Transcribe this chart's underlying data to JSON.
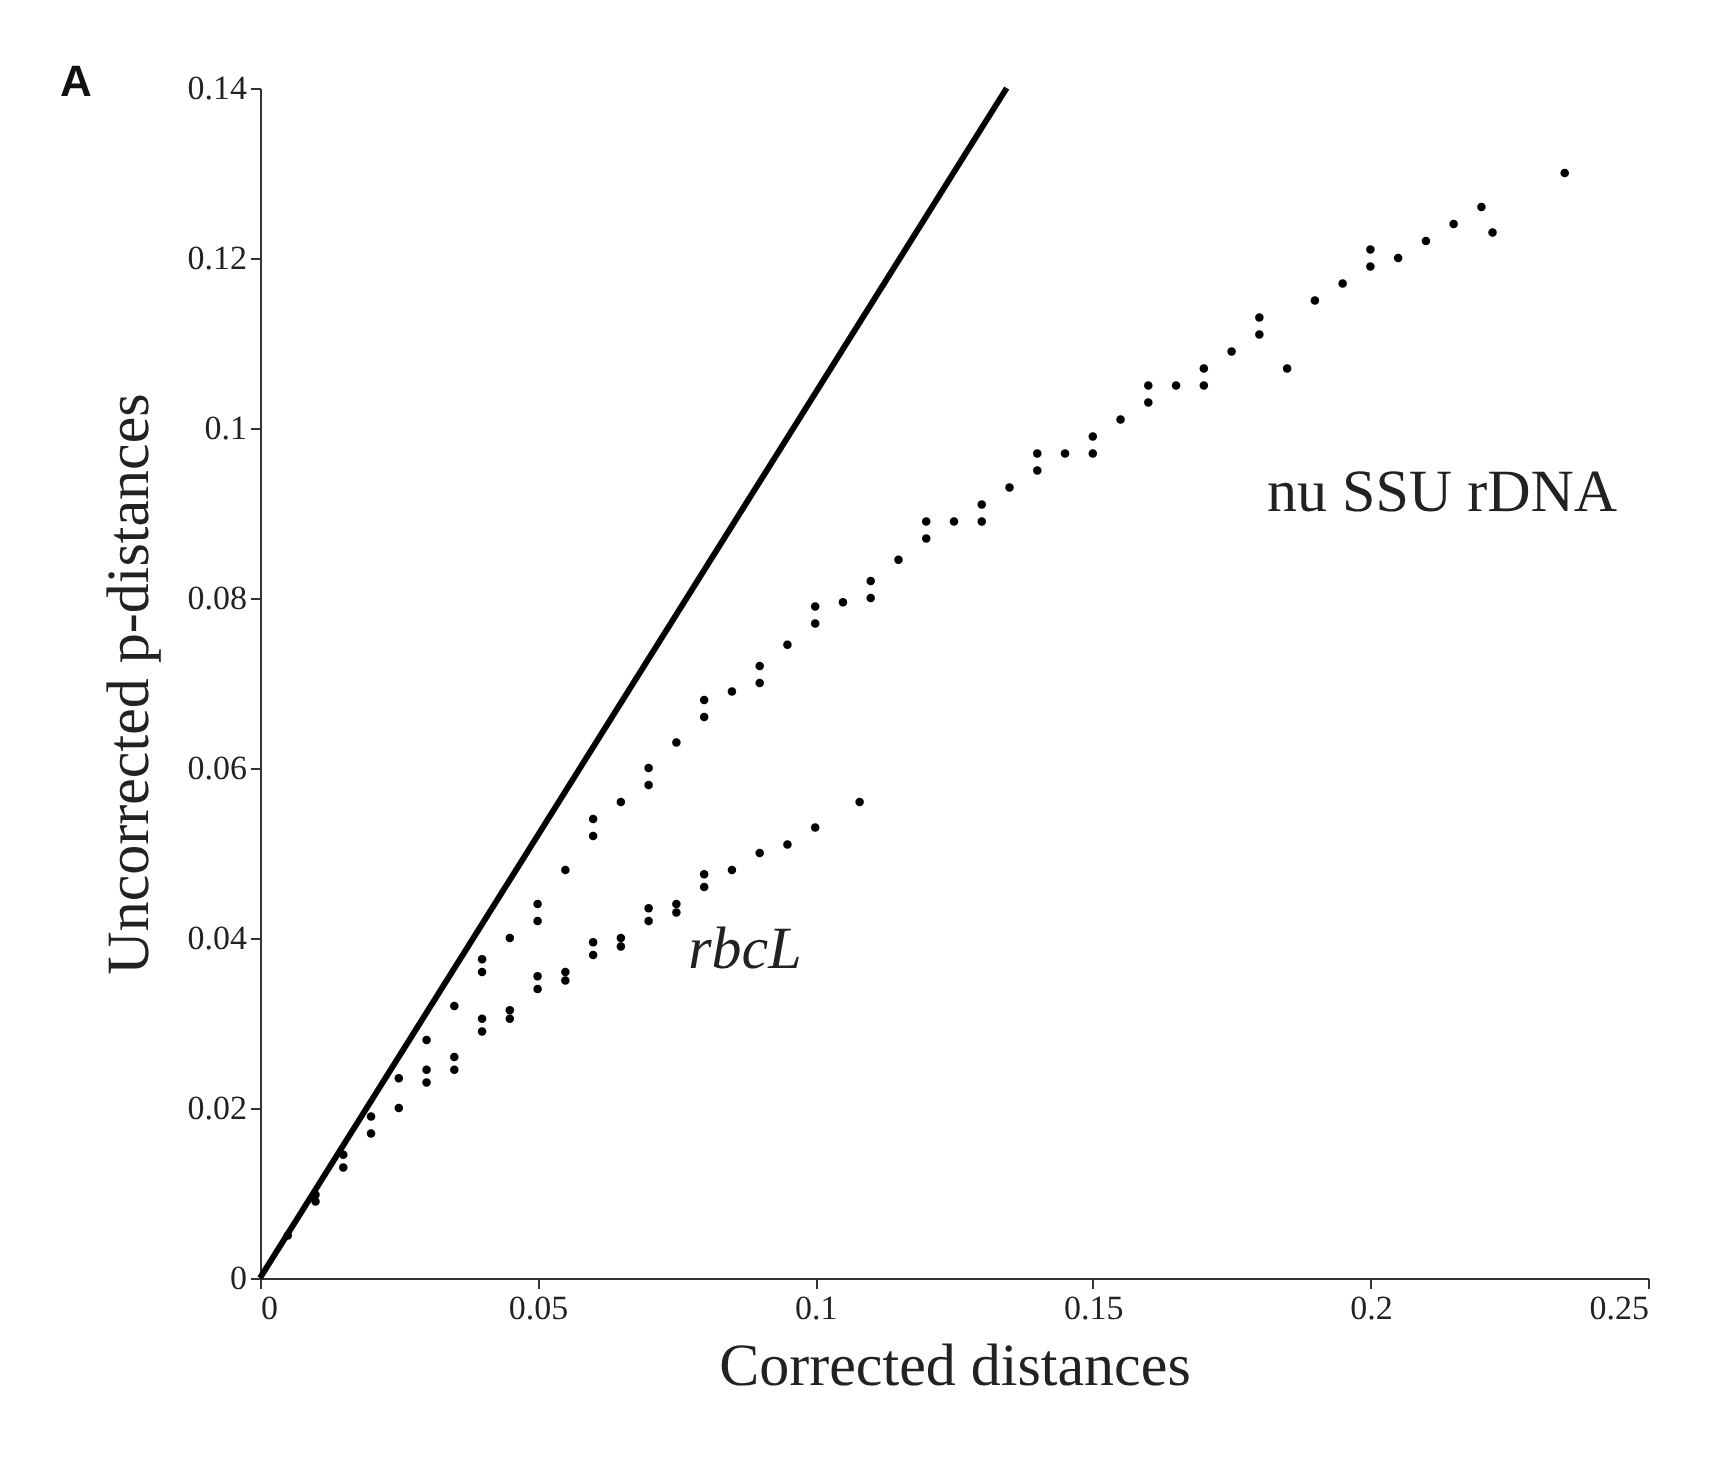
{
  "chart_data": {
    "type": "scatter",
    "title": "A",
    "xlabel": "Corrected distances",
    "ylabel": "Uncorrected p-distances",
    "xlim": [
      0,
      0.25
    ],
    "xticks": [
      0,
      0.05,
      0.1,
      0.15,
      0.2,
      0.25
    ],
    "ylim": [
      0,
      0.14
    ],
    "yticks": [
      0,
      0.02,
      0.04,
      0.06,
      0.08,
      0.1,
      0.12,
      0.14
    ],
    "grid": false,
    "series": [
      {
        "type": "line",
        "color": "#000000",
        "x": [
          0,
          0.1345
        ],
        "values": [
          0,
          0.14
        ]
      },
      {
        "name": "nu SSU rDNA",
        "color": "#000000",
        "marker": "circle",
        "x": [
          0.005,
          0.01,
          0.015,
          0.02,
          0.025,
          0.03,
          0.035,
          0.04,
          0.045,
          0.05,
          0.055,
          0.06,
          0.065,
          0.07,
          0.075,
          0.08,
          0.085,
          0.09,
          0.095,
          0.1,
          0.105,
          0.11,
          0.115,
          0.12,
          0.125,
          0.13,
          0.135,
          0.14,
          0.145,
          0.15,
          0.155,
          0.16,
          0.165,
          0.17,
          0.175,
          0.18,
          0.185,
          0.19,
          0.195,
          0.2,
          0.205,
          0.21,
          0.215,
          0.22,
          0.222,
          0.235,
          0.04,
          0.06,
          0.08,
          0.1,
          0.12,
          0.14,
          0.16,
          0.18,
          0.2,
          0.05,
          0.07,
          0.09,
          0.11,
          0.13,
          0.15,
          0.17
        ],
        "values": [
          0.005,
          0.0098,
          0.0145,
          0.019,
          0.0235,
          0.028,
          0.032,
          0.036,
          0.04,
          0.044,
          0.048,
          0.052,
          0.056,
          0.06,
          0.063,
          0.066,
          0.069,
          0.072,
          0.0745,
          0.077,
          0.0795,
          0.082,
          0.0845,
          0.087,
          0.089,
          0.091,
          0.093,
          0.095,
          0.097,
          0.099,
          0.101,
          0.103,
          0.105,
          0.107,
          0.109,
          0.111,
          0.107,
          0.115,
          0.117,
          0.119,
          0.12,
          0.122,
          0.124,
          0.126,
          0.123,
          0.13,
          0.0375,
          0.054,
          0.068,
          0.079,
          0.089,
          0.097,
          0.105,
          0.113,
          0.121,
          0.042,
          0.058,
          0.07,
          0.08,
          0.089,
          0.097,
          0.105
        ]
      },
      {
        "name": "rbcL",
        "color": "#000000",
        "marker": "circle",
        "x": [
          0.01,
          0.015,
          0.02,
          0.025,
          0.03,
          0.035,
          0.04,
          0.045,
          0.05,
          0.055,
          0.06,
          0.065,
          0.07,
          0.075,
          0.08,
          0.085,
          0.09,
          0.095,
          0.1,
          0.108,
          0.03,
          0.04,
          0.05,
          0.06,
          0.07,
          0.08,
          0.035,
          0.045,
          0.055,
          0.065,
          0.075
        ],
        "values": [
          0.009,
          0.013,
          0.017,
          0.02,
          0.023,
          0.026,
          0.029,
          0.0315,
          0.034,
          0.036,
          0.038,
          0.04,
          0.042,
          0.044,
          0.046,
          0.048,
          0.05,
          0.051,
          0.053,
          0.056,
          0.0245,
          0.0305,
          0.0355,
          0.0395,
          0.0435,
          0.0475,
          0.0245,
          0.0305,
          0.035,
          0.039,
          0.043
        ]
      }
    ]
  }
}
